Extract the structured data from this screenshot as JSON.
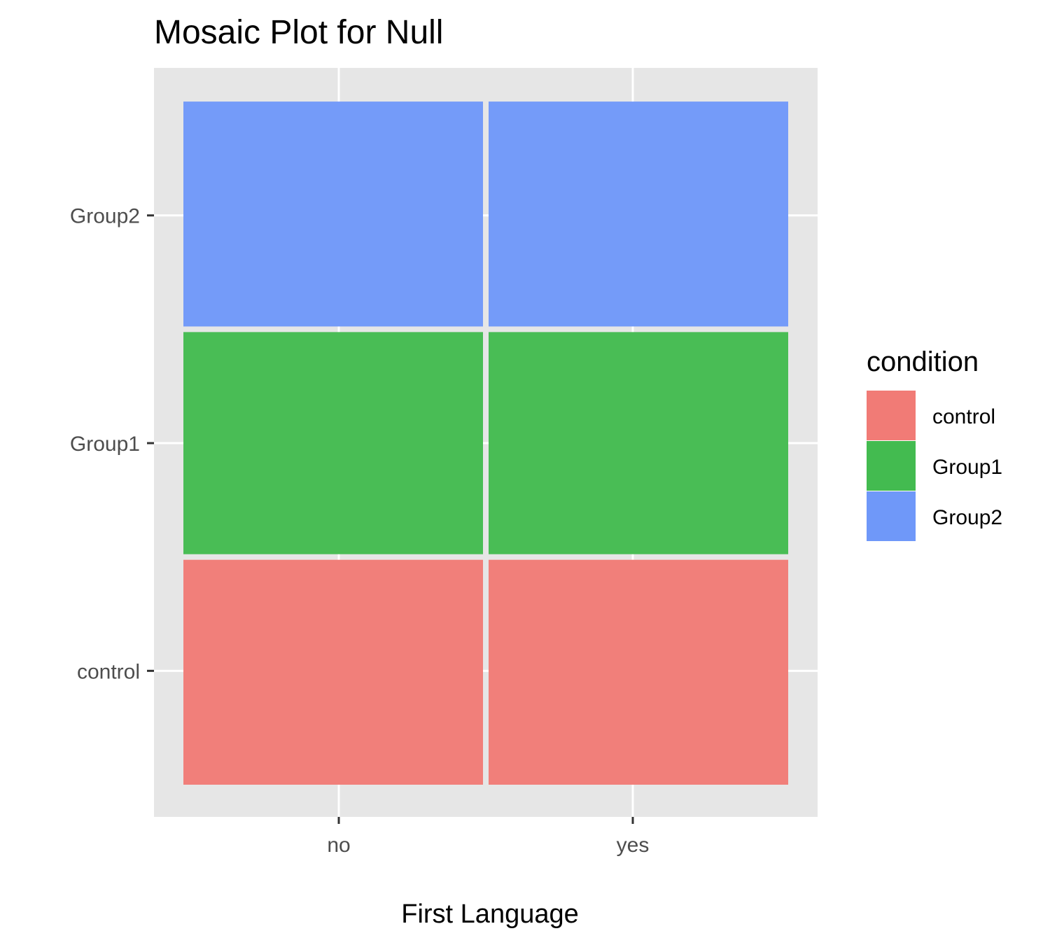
{
  "chart_data": {
    "type": "mosaic",
    "title": "Mosaic Plot for Null",
    "xlabel": "First Language",
    "ylabel": "",
    "x_categories": [
      "no",
      "yes"
    ],
    "y_categories": [
      "control",
      "Group1",
      "Group2"
    ],
    "cells": [
      {
        "x": "no",
        "y": "control",
        "fill": "control",
        "proportion": 0.3333
      },
      {
        "x": "no",
        "y": "Group1",
        "fill": "Group1",
        "proportion": 0.3333
      },
      {
        "x": "no",
        "y": "Group2",
        "fill": "Group2",
        "proportion": 0.3333
      },
      {
        "x": "yes",
        "y": "control",
        "fill": "control",
        "proportion": 0.3333
      },
      {
        "x": "yes",
        "y": "Group1",
        "fill": "Group1",
        "proportion": 0.3333
      },
      {
        "x": "yes",
        "y": "Group2",
        "fill": "Group2",
        "proportion": 0.3333
      }
    ],
    "x_widths": {
      "no": 0.5,
      "yes": 0.5
    },
    "legend": {
      "title": "condition",
      "placement": "right",
      "entries": [
        {
          "label": "control",
          "color": "#F17B76"
        },
        {
          "label": "Group1",
          "color": "#43BB50"
        },
        {
          "label": "Group2",
          "color": "#6F98F9"
        }
      ]
    },
    "grid": true
  }
}
